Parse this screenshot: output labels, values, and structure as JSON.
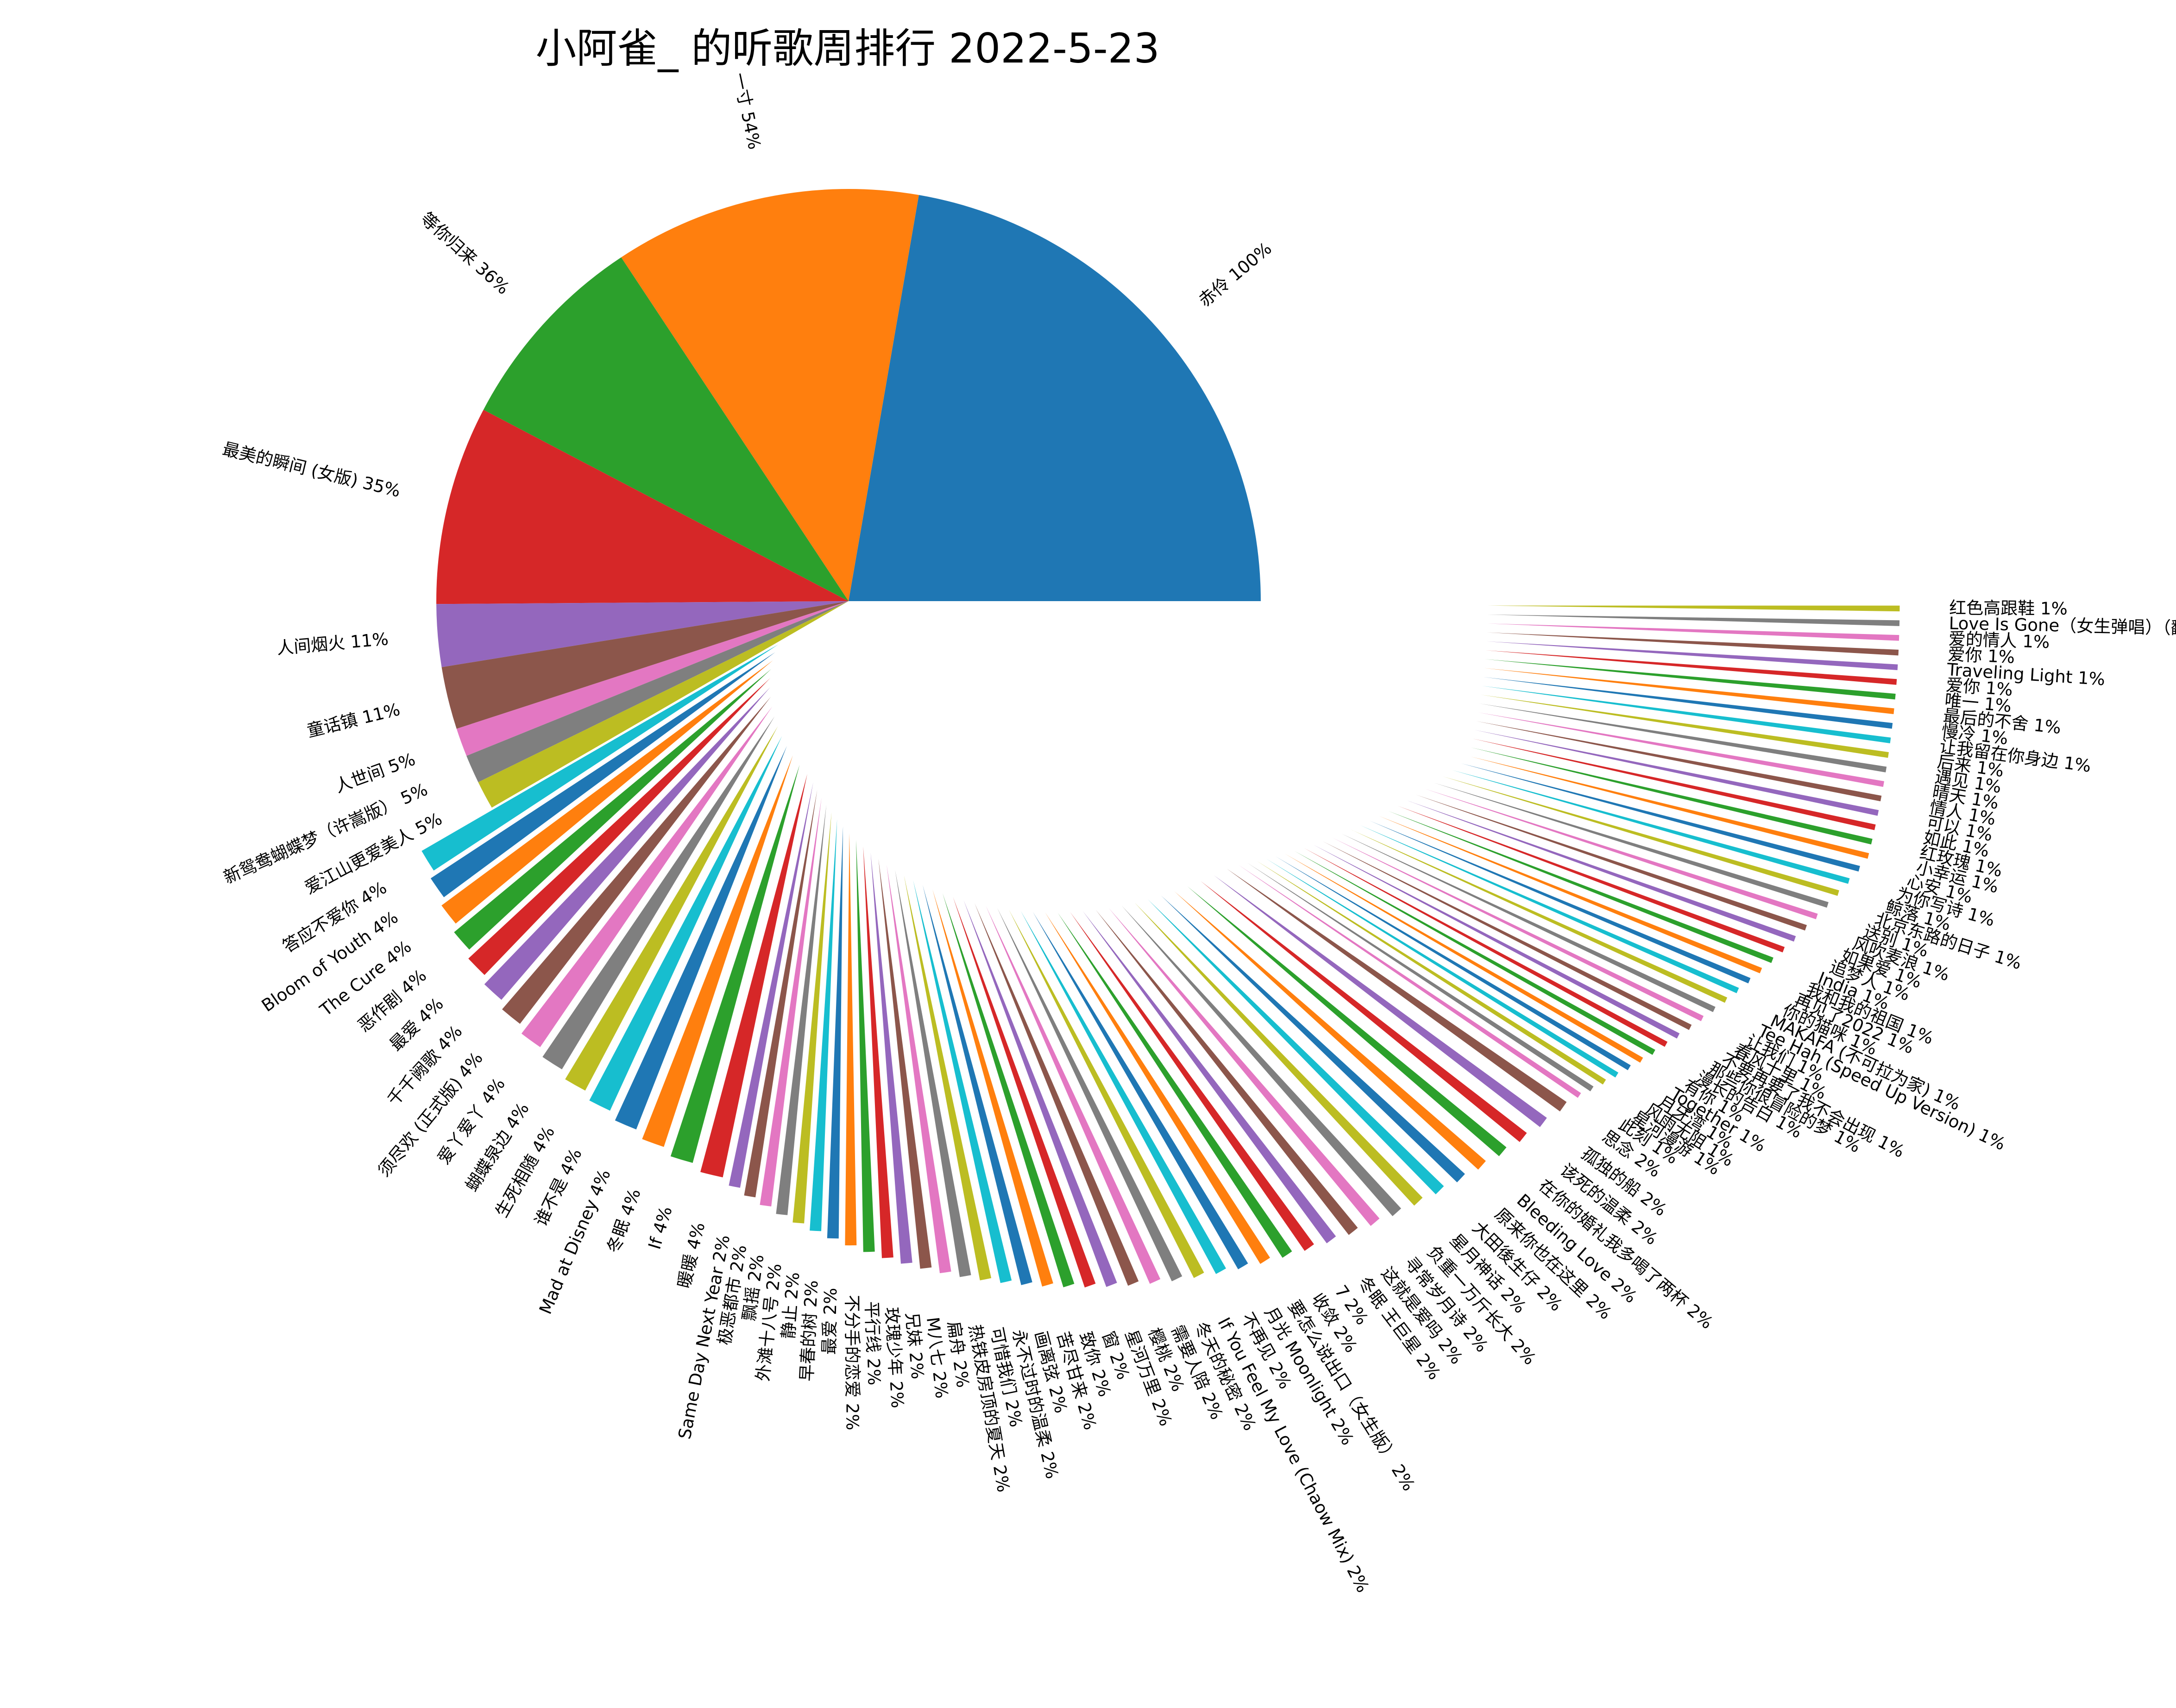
{
  "chart_data": {
    "type": "pie",
    "title": "小阿雀_ 的听歌周排行 2022-5-23",
    "value_unit": "%",
    "legend": "none",
    "colors": [
      "#1f77b4",
      "#ff7f0e",
      "#2ca02c",
      "#d62728",
      "#9467bd",
      "#8c564b",
      "#e377c2",
      "#7f7f7f",
      "#bcbd22",
      "#17becf"
    ],
    "slices": [
      {
        "label": "赤伶",
        "value": 100
      },
      {
        "label": "一寸",
        "value": 54
      },
      {
        "label": "等你归来",
        "value": 36
      },
      {
        "label": "最美的瞬间 (女版)",
        "value": 35
      },
      {
        "label": "人间烟火",
        "value": 11
      },
      {
        "label": "童话镇",
        "value": 11
      },
      {
        "label": "人世间",
        "value": 5
      },
      {
        "label": "新鸳鸯蝴蝶梦（许嵩版）",
        "value": 5
      },
      {
        "label": "爱江山更爱美人",
        "value": 5
      },
      {
        "label": "答应不爱你",
        "value": 4
      },
      {
        "label": "Bloom of Youth",
        "value": 4
      },
      {
        "label": "The Cure",
        "value": 4
      },
      {
        "label": "恶作剧",
        "value": 4
      },
      {
        "label": "最爱",
        "value": 4
      },
      {
        "label": "千千阙歌",
        "value": 4
      },
      {
        "label": "须尽欢 (正式版)",
        "value": 4
      },
      {
        "label": "爱丫爱丫",
        "value": 4
      },
      {
        "label": "蝴蝶泉边",
        "value": 4
      },
      {
        "label": "生死相随",
        "value": 4
      },
      {
        "label": "谁不是",
        "value": 4
      },
      {
        "label": "Mad at Disney",
        "value": 4
      },
      {
        "label": "冬眠",
        "value": 4
      },
      {
        "label": "If",
        "value": 4
      },
      {
        "label": "暖暖",
        "value": 4
      },
      {
        "label": "Same Day Next Year",
        "value": 2
      },
      {
        "label": "极恶都市",
        "value": 2
      },
      {
        "label": "飘摇",
        "value": 2
      },
      {
        "label": "外滩十八号",
        "value": 2
      },
      {
        "label": "静止",
        "value": 2
      },
      {
        "label": "早春的树",
        "value": 2
      },
      {
        "label": "最爱",
        "value": 2
      },
      {
        "label": "不分手的恋爱",
        "value": 2
      },
      {
        "label": "平行线",
        "value": 2
      },
      {
        "label": "玫瑰少年",
        "value": 2
      },
      {
        "label": "兄妹",
        "value": 2
      },
      {
        "label": "M八七",
        "value": 2
      },
      {
        "label": "扁舟",
        "value": 2
      },
      {
        "label": "热铁皮房顶的夏天",
        "value": 2
      },
      {
        "label": "可惜我们",
        "value": 2
      },
      {
        "label": "永不过时的温柔",
        "value": 2
      },
      {
        "label": "画离弦",
        "value": 2
      },
      {
        "label": "苦尽甘来",
        "value": 2
      },
      {
        "label": "致你",
        "value": 2
      },
      {
        "label": "窗",
        "value": 2
      },
      {
        "label": "星河万里",
        "value": 2
      },
      {
        "label": "樱桃",
        "value": 2
      },
      {
        "label": "需要人陪",
        "value": 2
      },
      {
        "label": "冬天的秘密",
        "value": 2
      },
      {
        "label": "If You Feel My Love (Chaow Mix)",
        "value": 2
      },
      {
        "label": "不再见",
        "value": 2
      },
      {
        "label": "月光 Moonlight",
        "value": 2
      },
      {
        "label": "要怎么说出口（女生版）",
        "value": 2
      },
      {
        "label": "收敛",
        "value": 2
      },
      {
        "label": "7",
        "value": 2
      },
      {
        "label": "冬眠 王巨星",
        "value": 2
      },
      {
        "label": "这就是爱吗",
        "value": 2
      },
      {
        "label": "寻常岁月诗",
        "value": 2
      },
      {
        "label": "负重一万斤长大",
        "value": 2
      },
      {
        "label": "星月神话",
        "value": 2
      },
      {
        "label": "大田後生仔",
        "value": 2
      },
      {
        "label": "原来你也在这里",
        "value": 2
      },
      {
        "label": "Bleeding Love",
        "value": 2
      },
      {
        "label": "在你的婚礼我多喝了两杯",
        "value": 2
      },
      {
        "label": "该死的温柔",
        "value": 2
      },
      {
        "label": "孤独的船",
        "value": 2
      },
      {
        "label": "思念",
        "value": 2
      },
      {
        "label": "此刻",
        "value": 1
      },
      {
        "label": "星河漫游",
        "value": 1
      },
      {
        "label": "风雨无阻",
        "value": 1
      },
      {
        "label": "月牙湾",
        "value": 1
      },
      {
        "label": "Together",
        "value": 1
      },
      {
        "label": "有你",
        "value": 1
      },
      {
        "label": "漫长的告白",
        "value": 1
      },
      {
        "label": "那些你很冒险的梦",
        "value": 1
      },
      {
        "label": "不要再要了我不会出现",
        "value": 1
      },
      {
        "label": "春风十里",
        "value": 1
      },
      {
        "label": "让我们",
        "value": 1
      },
      {
        "label": "Tee Hah (Speed Up Version)",
        "value": 1
      },
      {
        "label": "MAKAFA (不可拉为家)",
        "value": 1
      },
      {
        "label": "你的猫咪",
        "value": 1
      },
      {
        "label": "再见了2022",
        "value": 1
      },
      {
        "label": "我和我的祖国",
        "value": 1
      },
      {
        "label": "India",
        "value": 1
      },
      {
        "label": "追梦人",
        "value": 1
      },
      {
        "label": "如果爱",
        "value": 1
      },
      {
        "label": "风吹麦浪",
        "value": 1
      },
      {
        "label": "送别",
        "value": 1
      },
      {
        "label": "北京东路的日子",
        "value": 1
      },
      {
        "label": "鲸落",
        "value": 1
      },
      {
        "label": "为你写诗",
        "value": 1
      },
      {
        "label": "心安",
        "value": 1
      },
      {
        "label": "小幸运",
        "value": 1
      },
      {
        "label": "红玫瑰",
        "value": 1
      },
      {
        "label": "如此",
        "value": 1
      },
      {
        "label": "可以",
        "value": 1
      },
      {
        "label": "情人",
        "value": 1
      },
      {
        "label": "晴天",
        "value": 1
      },
      {
        "label": "遇见",
        "value": 1
      },
      {
        "label": "后来",
        "value": 1
      },
      {
        "label": "让我留在你身边",
        "value": 1
      },
      {
        "label": "慢冷",
        "value": 1
      },
      {
        "label": "最后的不舍",
        "value": 1
      },
      {
        "label": "唯一",
        "value": 1
      },
      {
        "label": "爱你",
        "value": 1
      },
      {
        "label": "Traveling Light",
        "value": 1
      },
      {
        "label": "爱你",
        "value": 1
      },
      {
        "label": "爱的情人",
        "value": 1
      },
      {
        "label": "Love Is Gone（女生弹唱）（翻自 SLANDER）",
        "value": 1
      },
      {
        "label": "红色高跟鞋",
        "value": 1
      }
    ]
  }
}
